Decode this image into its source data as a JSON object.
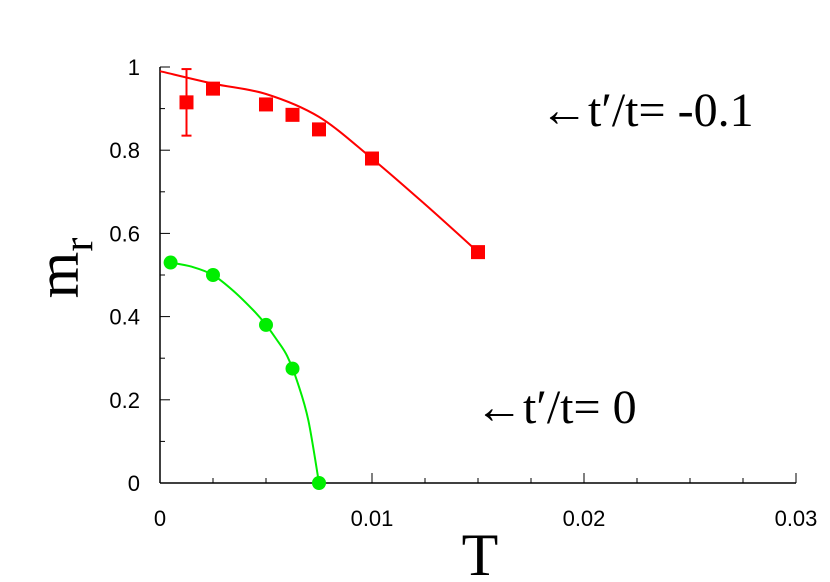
{
  "chart_data": {
    "type": "scatter",
    "xlabel": "T",
    "ylabel": "m",
    "ylabel_sub": "r",
    "xlim": [
      0,
      0.03
    ],
    "ylim": [
      0,
      1
    ],
    "x_ticks": [
      0,
      0.01,
      0.02,
      0.03
    ],
    "x_tick_labels": [
      "0",
      "0.01",
      "0.02",
      "0.03"
    ],
    "y_ticks": [
      0,
      0.2,
      0.4,
      0.6,
      0.8,
      1
    ],
    "y_tick_labels": [
      "0",
      "0.2",
      "0.4",
      "0.6",
      "0.8",
      "1"
    ],
    "grid": false,
    "series": [
      {
        "name": "←t′/t= -0.1",
        "color": "#ff0000",
        "marker": "square",
        "points": [
          {
            "x": 0.00125,
            "y": 0.915,
            "err": 0.08
          },
          {
            "x": 0.0025,
            "y": 0.948
          },
          {
            "x": 0.005,
            "y": 0.91
          },
          {
            "x": 0.00625,
            "y": 0.885
          },
          {
            "x": 0.0075,
            "y": 0.85
          },
          {
            "x": 0.01,
            "y": 0.78
          },
          {
            "x": 0.015,
            "y": 0.555
          }
        ],
        "fit": [
          [
            0,
            0.99
          ],
          [
            0.0025,
            0.96
          ],
          [
            0.005,
            0.935
          ],
          [
            0.0075,
            0.88
          ],
          [
            0.01,
            0.78
          ],
          [
            0.0125,
            0.67
          ],
          [
            0.015,
            0.555
          ]
        ]
      },
      {
        "name": "←t′/t= 0",
        "color": "#00ee00",
        "marker": "circle",
        "points": [
          {
            "x": 0.0005,
            "y": 0.53
          },
          {
            "x": 0.0025,
            "y": 0.5
          },
          {
            "x": 0.005,
            "y": 0.38
          },
          {
            "x": 0.00625,
            "y": 0.275
          },
          {
            "x": 0.0075,
            "y": 0
          }
        ],
        "fit": [
          [
            0.0005,
            0.53
          ],
          [
            0.0015,
            0.52
          ],
          [
            0.0025,
            0.5
          ],
          [
            0.0035,
            0.46
          ],
          [
            0.0045,
            0.41
          ],
          [
            0.005,
            0.38
          ],
          [
            0.0055,
            0.345
          ],
          [
            0.006,
            0.305
          ],
          [
            0.0065,
            0.24
          ],
          [
            0.007,
            0.15
          ],
          [
            0.0075,
            0
          ]
        ]
      }
    ]
  }
}
